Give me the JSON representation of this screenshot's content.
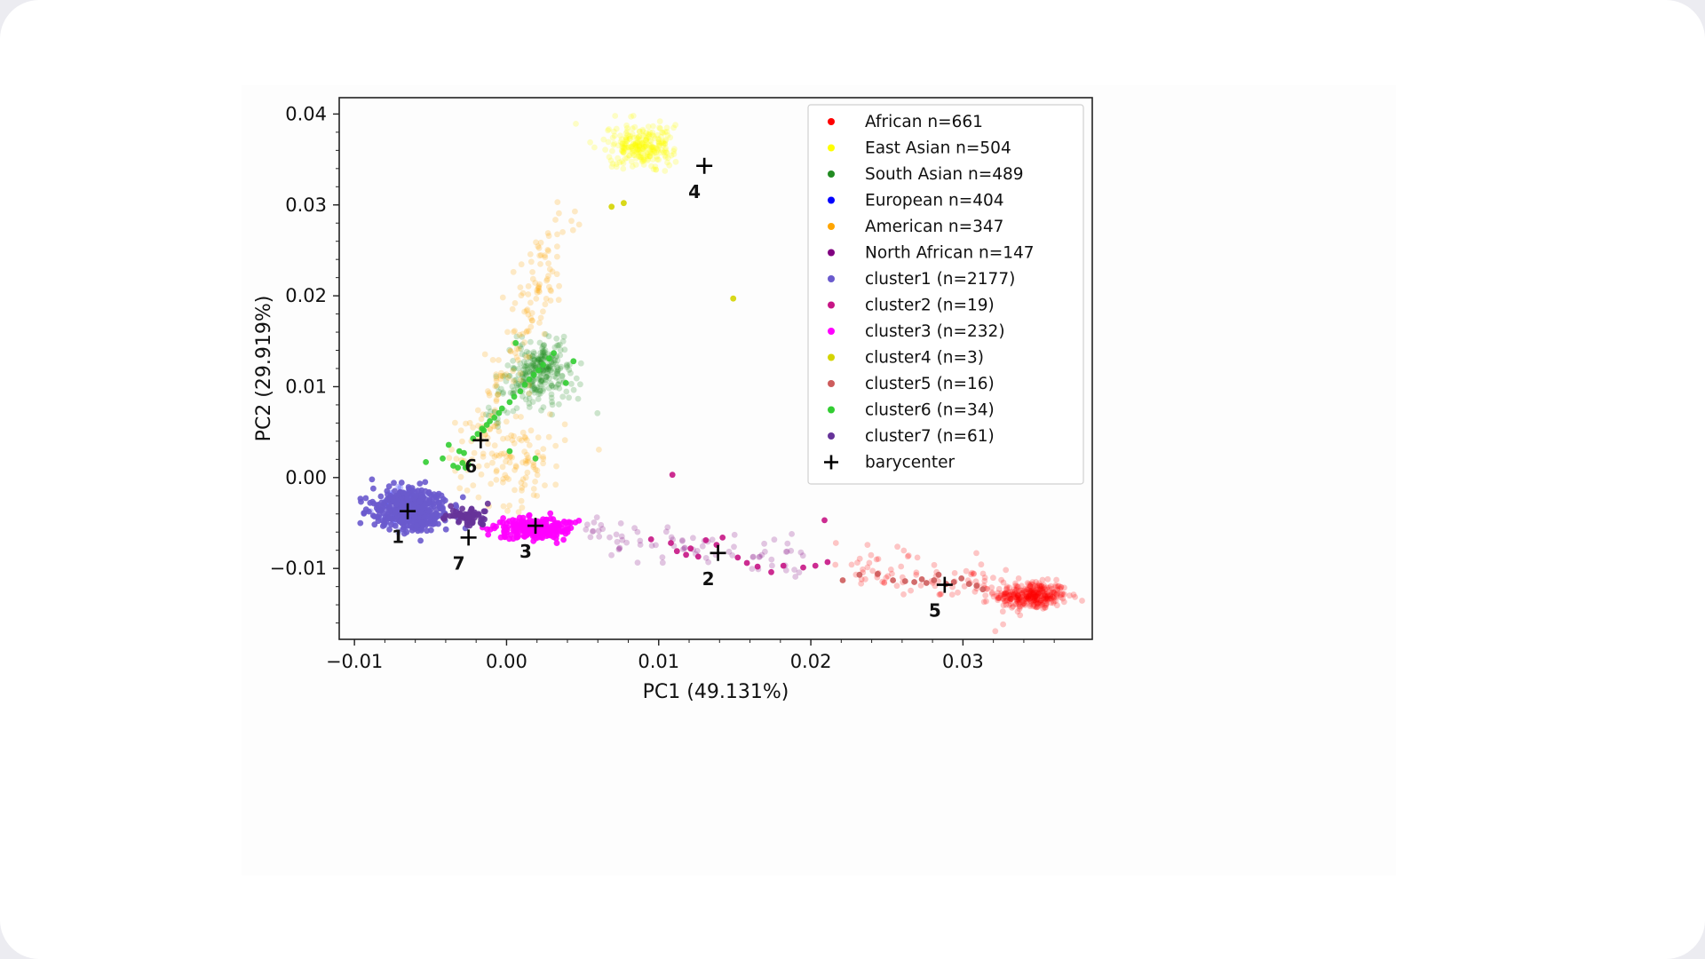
{
  "chart_data": {
    "type": "scatter",
    "xlabel": "PC1 (49.131%)",
    "ylabel": "PC2 (29.919%)",
    "xlim": [
      -0.011,
      0.0385
    ],
    "ylim": [
      -0.0178,
      0.0418
    ],
    "x_ticks": [
      -0.01,
      0.0,
      0.01,
      0.02,
      0.03
    ],
    "x_tick_labels": [
      "−0.01",
      "0.00",
      "0.01",
      "0.02",
      "0.03"
    ],
    "y_ticks": [
      -0.01,
      0.0,
      0.01,
      0.02,
      0.03,
      0.04
    ],
    "y_tick_labels": [
      "−0.01",
      "0.00",
      "0.01",
      "0.02",
      "0.03",
      "0.04"
    ],
    "grid": false,
    "legend_position": "top-right",
    "series": [
      {
        "name": "African n=661",
        "color": "#ff0000",
        "faint": true,
        "clusters": [
          {
            "cx": 0.0345,
            "cy": -0.013,
            "sx": 0.0012,
            "sy": 0.00075,
            "n": 330
          }
        ],
        "paths": [
          {
            "from": [
              0.022,
              -0.0095
            ],
            "to": [
              0.034,
              -0.0128
            ],
            "n": 90,
            "jitter": 0.0012
          }
        ]
      },
      {
        "name": "East Asian n=504",
        "color": "#ffff00",
        "faint": true,
        "clusters": [
          {
            "cx": 0.0088,
            "cy": 0.0365,
            "sx": 0.0011,
            "sy": 0.0011,
            "n": 260
          }
        ]
      },
      {
        "name": "South Asian n=489",
        "color": "#228b22",
        "faint": true,
        "clusters": [
          {
            "cx": 0.0022,
            "cy": 0.0115,
            "sx": 0.0011,
            "sy": 0.0018,
            "n": 230
          }
        ],
        "paths": [
          {
            "from": [
              -0.001,
              0.0065
            ],
            "to": [
              0.0035,
              0.0145
            ],
            "n": 70,
            "jitter": 0.0008
          }
        ]
      },
      {
        "name": "European n=404",
        "color": "#0000ff",
        "faint": true,
        "clusters": [
          {
            "cx": -0.0065,
            "cy": -0.0035,
            "sx": 0.001,
            "sy": 0.0012,
            "n": 120
          }
        ]
      },
      {
        "name": "American n=347",
        "color": "#ffa500",
        "faint": true,
        "clusters": [
          {
            "cx": 0.0003,
            "cy": 0.002,
            "sx": 0.0018,
            "sy": 0.0025,
            "n": 120
          }
        ],
        "paths": [
          {
            "from": [
              -0.002,
              0.003
            ],
            "to": [
              0.0035,
              0.028
            ],
            "n": 150,
            "jitter": 0.0012
          }
        ]
      },
      {
        "name": "North African n=147",
        "color": "#800080",
        "faint": true,
        "paths": [
          {
            "from": [
              0.005,
              -0.006
            ],
            "to": [
              0.02,
              -0.009
            ],
            "n": 80,
            "jitter": 0.001
          }
        ]
      },
      {
        "name": "cluster1 (n=2177)",
        "color": "#6a5acd",
        "clusters": [
          {
            "cx": -0.0063,
            "cy": -0.0035,
            "sx": 0.00125,
            "sy": 0.00115,
            "n": 420
          }
        ]
      },
      {
        "name": "cluster2 (n=19)",
        "color": "#c71585",
        "points": [
          [
            0.0095,
            -0.0068
          ],
          [
            0.0108,
            -0.0072
          ],
          [
            0.0112,
            -0.0081
          ],
          [
            0.0118,
            -0.0085
          ],
          [
            0.0121,
            -0.0078
          ],
          [
            0.0126,
            -0.0087
          ],
          [
            0.0131,
            -0.0069
          ],
          [
            0.0138,
            -0.0074
          ],
          [
            0.0142,
            -0.0066
          ],
          [
            0.0109,
            0.0003
          ],
          [
            0.0152,
            -0.0088
          ],
          [
            0.0158,
            -0.0094
          ],
          [
            0.0165,
            -0.0098
          ],
          [
            0.0174,
            -0.0104
          ],
          [
            0.0182,
            -0.0097
          ],
          [
            0.0195,
            -0.0099
          ],
          [
            0.0203,
            -0.0097
          ],
          [
            0.0211,
            -0.0093
          ],
          [
            0.0209,
            -0.0047
          ]
        ]
      },
      {
        "name": "cluster3 (n=232)",
        "color": "#ff00ff",
        "clusters": [
          {
            "cx": 0.0019,
            "cy": -0.0056,
            "sx": 0.0012,
            "sy": 0.0006,
            "n": 230
          }
        ]
      },
      {
        "name": "cluster4 (n=3)",
        "color": "#d4d400",
        "points": [
          [
            0.0069,
            0.0298
          ],
          [
            0.0077,
            0.0302
          ],
          [
            0.0149,
            0.0197
          ]
        ]
      },
      {
        "name": "cluster5 (n=16)",
        "color": "#cd5c5c",
        "points": [
          [
            0.0221,
            -0.0113
          ],
          [
            0.0232,
            -0.0107
          ],
          [
            0.0244,
            -0.0106
          ],
          [
            0.0254,
            -0.0113
          ],
          [
            0.0262,
            -0.0114
          ],
          [
            0.0268,
            -0.0115
          ],
          [
            0.0273,
            -0.0112
          ],
          [
            0.0276,
            -0.0116
          ],
          [
            0.0281,
            -0.0113
          ],
          [
            0.0284,
            -0.0107
          ],
          [
            0.0289,
            -0.0117
          ],
          [
            0.0294,
            -0.0115
          ],
          [
            0.0299,
            -0.0111
          ],
          [
            0.0304,
            -0.0117
          ],
          [
            0.0309,
            -0.0119
          ],
          [
            0.0313,
            -0.0123
          ]
        ]
      },
      {
        "name": "cluster6 (n=34)",
        "color": "#32cd32",
        "points": [
          [
            -0.0053,
            0.0017
          ],
          [
            -0.0042,
            0.0021
          ],
          [
            -0.0035,
            0.0013
          ],
          [
            -0.0032,
            0.0011
          ],
          [
            -0.0029,
            0.0016
          ],
          [
            -0.0028,
            0.0027
          ],
          [
            -0.0031,
            0.0029
          ],
          [
            -0.0027,
            0.0011
          ],
          [
            -0.0025,
            0.0014
          ],
          [
            -0.0022,
            0.0043
          ],
          [
            -0.0019,
            0.0048
          ],
          [
            -0.0016,
            0.0054
          ],
          [
            -0.0015,
            0.0052
          ],
          [
            -0.0013,
            0.0058
          ],
          [
            -0.0011,
            0.0062
          ],
          [
            -0.0008,
            0.0066
          ],
          [
            -0.0005,
            0.0071
          ],
          [
            -0.0003,
            0.0076
          ],
          [
            0.0002,
            0.0083
          ],
          [
            0.0005,
            0.0089
          ],
          [
            0.0009,
            0.0095
          ],
          [
            0.0012,
            0.0102
          ],
          [
            0.0015,
            0.0108
          ],
          [
            0.0018,
            0.0113
          ],
          [
            0.0021,
            0.0118
          ],
          [
            0.0024,
            0.0124
          ],
          [
            0.0028,
            0.0131
          ],
          [
            0.0031,
            0.0137
          ],
          [
            0.0039,
            0.0104
          ],
          [
            0.0006,
            0.0148
          ],
          [
            0.0002,
            0.0029
          ],
          [
            0.0019,
            0.0021
          ],
          [
            -0.0038,
            0.0036
          ],
          [
            0.0044,
            0.0128
          ]
        ]
      },
      {
        "name": "cluster7 (n=61)",
        "color": "#663399",
        "clusters": [
          {
            "cx": -0.0026,
            "cy": -0.0043,
            "sx": 0.00075,
            "sy": 0.00055,
            "n": 61
          }
        ]
      }
    ],
    "barycenters": [
      {
        "label": "1",
        "x": -0.0065,
        "y": -0.0037
      },
      {
        "label": "2",
        "x": 0.0139,
        "y": -0.0083
      },
      {
        "label": "3",
        "x": 0.0019,
        "y": -0.0053
      },
      {
        "label": "4",
        "x": 0.013,
        "y": 0.0343
      },
      {
        "label": "5",
        "x": 0.0288,
        "y": -0.0118
      },
      {
        "label": "6",
        "x": -0.0017,
        "y": 0.0041
      },
      {
        "label": "7",
        "x": -0.0025,
        "y": -0.0066
      }
    ],
    "legend": [
      {
        "label": "African n=661",
        "color": "#ff0000",
        "marker": "dot"
      },
      {
        "label": "East Asian n=504",
        "color": "#ffff00",
        "marker": "dot"
      },
      {
        "label": "South Asian n=489",
        "color": "#228b22",
        "marker": "dot"
      },
      {
        "label": "European n=404",
        "color": "#0000ff",
        "marker": "dot"
      },
      {
        "label": "American n=347",
        "color": "#ffa500",
        "marker": "dot"
      },
      {
        "label": "North African n=147",
        "color": "#800080",
        "marker": "dot"
      },
      {
        "label": "cluster1  (n=2177)",
        "color": "#6a5acd",
        "marker": "dot"
      },
      {
        "label": "cluster2  (n=19)",
        "color": "#c71585",
        "marker": "dot"
      },
      {
        "label": "cluster3  (n=232)",
        "color": "#ff00ff",
        "marker": "dot"
      },
      {
        "label": "cluster4  (n=3)",
        "color": "#d4d400",
        "marker": "dot"
      },
      {
        "label": "cluster5  (n=16)",
        "color": "#cd5c5c",
        "marker": "dot"
      },
      {
        "label": "cluster6  (n=34)",
        "color": "#32cd32",
        "marker": "dot"
      },
      {
        "label": "cluster7  (n=61)",
        "color": "#663399",
        "marker": "dot"
      },
      {
        "label": "barycenter",
        "color": "#000000",
        "marker": "plus"
      }
    ]
  }
}
